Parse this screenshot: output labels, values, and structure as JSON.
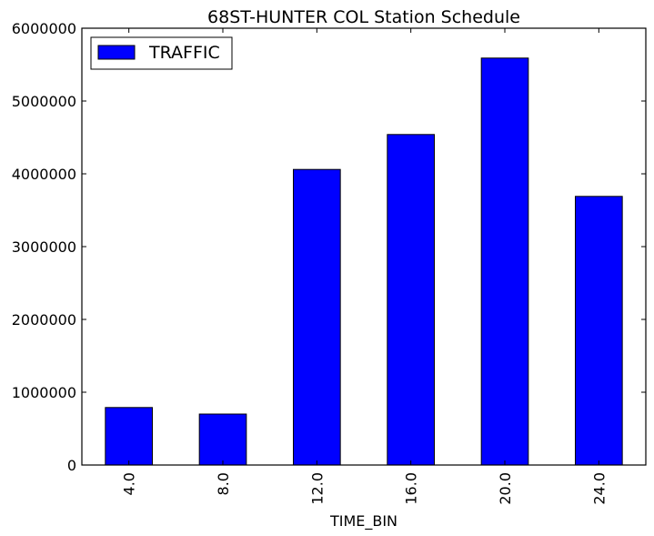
{
  "chart_data": {
    "type": "bar",
    "title": "68ST-HUNTER COL Station Schedule",
    "xlabel": "TIME_BIN",
    "ylabel": "",
    "categories": [
      "4.0",
      "8.0",
      "12.0",
      "16.0",
      "20.0",
      "24.0"
    ],
    "series": [
      {
        "name": "TRAFFIC",
        "color": "#0000ff",
        "values": [
          790000,
          700000,
          4060000,
          4540000,
          5590000,
          3690000
        ]
      }
    ],
    "ylim": [
      0,
      6000000
    ],
    "yticks": [
      0,
      1000000,
      2000000,
      3000000,
      4000000,
      5000000,
      6000000
    ],
    "ytick_labels": [
      "0",
      "1000000",
      "2000000",
      "3000000",
      "4000000",
      "5000000",
      "6000000"
    ],
    "legend": {
      "placement": "top-left",
      "labels": [
        "TRAFFIC"
      ]
    },
    "grid": false
  }
}
